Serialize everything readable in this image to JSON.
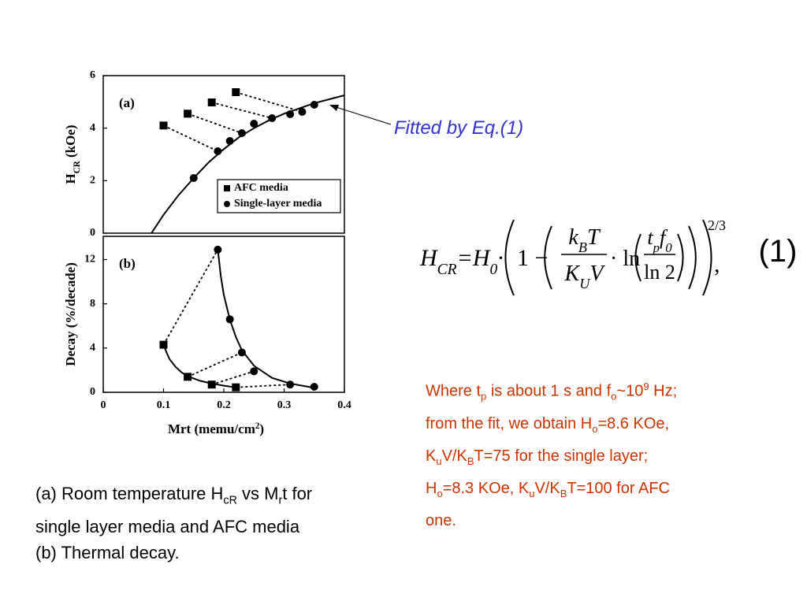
{
  "chart_data": [
    {
      "type": "scatter",
      "panel_label": "(a)",
      "ylabel": [
        {
          "text": "H"
        },
        {
          "text": "CR",
          "style": "sub"
        },
        {
          "text": "  (kOe)"
        }
      ],
      "xlim": [
        0,
        0.4
      ],
      "ylim": [
        0,
        6
      ],
      "yticks": [
        0,
        2,
        4,
        6
      ],
      "legend": "lower right",
      "series": [
        {
          "name": "AFC media",
          "color": "#000000",
          "marker": "square",
          "x": [
            0.1,
            0.14,
            0.18,
            0.22
          ],
          "values": [
            4.1,
            4.55,
            4.98,
            5.37
          ]
        },
        {
          "name": "Single-layer media",
          "color": "#000000",
          "marker": "circle",
          "x": [
            0.15,
            0.19,
            0.21,
            0.23,
            0.25,
            0.28,
            0.31,
            0.33,
            0.35
          ],
          "values": [
            2.1,
            3.12,
            3.51,
            3.81,
            4.17,
            4.38,
            4.53,
            4.62,
            4.89
          ]
        }
      ],
      "curves": [
        {
          "x": [
            0.08,
            0.1,
            0.125,
            0.15,
            0.175,
            0.2,
            0.225,
            0.25,
            0.275,
            0.3,
            0.325,
            0.35,
            0.375,
            0.4
          ],
          "values": [
            0,
            0.7,
            1.45,
            2.1,
            2.7,
            3.2,
            3.65,
            4.0,
            4.3,
            4.55,
            4.75,
            4.95,
            5.1,
            5.25
          ]
        }
      ]
    },
    {
      "type": "scatter",
      "panel_label": "(b)",
      "ylabel": [
        {
          "text": "Decay  (%/decade)"
        }
      ],
      "xlabel": [
        {
          "text": "Mrt (memu/cm"
        },
        {
          "text": "2",
          "style": "sup"
        },
        {
          "text": ")"
        }
      ],
      "xlim": [
        0,
        0.4
      ],
      "xticks": [
        0,
        0.1,
        0.2,
        0.3,
        0.4
      ],
      "ylim": [
        0,
        14.1
      ],
      "yticks": [
        0,
        4,
        8,
        12
      ],
      "series": [
        {
          "name": "AFC media",
          "color": "#000000",
          "marker": "square",
          "x": [
            0.1,
            0.14,
            0.18,
            0.22
          ],
          "values": [
            4.3,
            1.4,
            0.7,
            0.45
          ]
        },
        {
          "name": "Single-layer media",
          "color": "#000000",
          "marker": "circle",
          "x": [
            0.19,
            0.21,
            0.23,
            0.25,
            0.31,
            0.35
          ],
          "values": [
            12.9,
            6.6,
            3.6,
            1.9,
            0.7,
            0.5
          ]
        }
      ],
      "curves": [
        {
          "x": [
            0.1,
            0.105,
            0.11,
            0.12,
            0.13,
            0.14,
            0.16,
            0.18,
            0.2,
            0.22
          ],
          "values": [
            4.3,
            3.6,
            3.0,
            2.3,
            1.8,
            1.45,
            1.05,
            0.8,
            0.6,
            0.45
          ]
        },
        {
          "x": [
            0.19,
            0.195,
            0.2,
            0.21,
            0.22,
            0.23,
            0.25,
            0.28,
            0.31,
            0.35
          ],
          "values": [
            12.9,
            10.5,
            8.8,
            6.6,
            5.0,
            3.8,
            2.4,
            1.3,
            0.8,
            0.4
          ]
        }
      ]
    }
  ],
  "annotation": {
    "text": "Fitted by Eq.(1)"
  },
  "equation": {
    "lhs": [
      {
        "text": "H"
      },
      {
        "text": "CR",
        "style": "sub"
      },
      {
        "text": "="
      },
      {
        "text": "H"
      },
      {
        "text": "0",
        "style": "sub"
      },
      {
        "text": "·"
      }
    ],
    "one": "1 −",
    "num1": [
      {
        "text": "k"
      },
      {
        "text": "B",
        "style": "sub"
      },
      {
        "text": "T"
      }
    ],
    "den1": [
      {
        "text": "K"
      },
      {
        "text": "U",
        "style": "sub"
      },
      {
        "text": "V"
      }
    ],
    "ln": "· ln",
    "num2": [
      {
        "text": "t"
      },
      {
        "text": "p",
        "style": "sub"
      },
      {
        "text": "f"
      },
      {
        "text": "0",
        "style": "sub"
      }
    ],
    "den2": "ln 2",
    "exponent": "2/3",
    "comma": ",",
    "number": "(1)"
  },
  "note": {
    "lines": [
      [
        {
          "text": "Where t"
        },
        {
          "text": "p",
          "style": "sub"
        },
        {
          "text": " is about 1 s and f"
        },
        {
          "text": "o",
          "style": "sub"
        },
        {
          "text": "~10"
        },
        {
          "text": "9",
          "style": "sup"
        },
        {
          "text": " Hz;"
        }
      ],
      [
        {
          "text": "from the fit, we obtain H"
        },
        {
          "text": "o",
          "style": "sub"
        },
        {
          "text": "=8.6 KOe,"
        }
      ],
      [
        {
          "text": "K"
        },
        {
          "text": "u",
          "style": "sub"
        },
        {
          "text": "V/K"
        },
        {
          "text": "B",
          "style": "sub"
        },
        {
          "text": "T=75 for the single layer;"
        }
      ],
      [
        {
          "text": "H"
        },
        {
          "text": "o",
          "style": "sub"
        },
        {
          "text": "=8.3 KOe, K"
        },
        {
          "text": "u",
          "style": "sub"
        },
        {
          "text": "V/K"
        },
        {
          "text": "B",
          "style": "sub"
        },
        {
          "text": "T=100 for AFC"
        }
      ],
      [
        {
          "text": "one."
        }
      ]
    ]
  },
  "caption": {
    "lines": [
      [
        {
          "text": "(a) Room temperature H"
        },
        {
          "text": "cR",
          "style": "sub"
        },
        {
          "text": " vs M"
        },
        {
          "text": "r",
          "style": "sub"
        },
        {
          "text": "t for"
        }
      ],
      [
        {
          "text": "single layer media and AFC media"
        }
      ],
      [
        {
          "text": "(b) Thermal decay."
        }
      ]
    ]
  }
}
